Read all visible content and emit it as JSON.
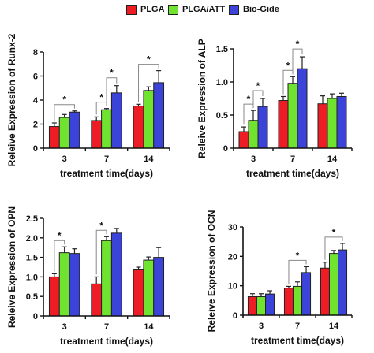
{
  "legend": {
    "items": [
      {
        "label": "PLGA",
        "color": "#ee1c24"
      },
      {
        "label": "PLGA/ATT",
        "color": "#6fe32f"
      },
      {
        "label": "Bio-Gide",
        "color": "#3b43d8"
      }
    ]
  },
  "chart_data": [
    {
      "type": "bar",
      "categories": [
        "3",
        "7",
        "14"
      ],
      "series": [
        {
          "name": "PLGA",
          "values": [
            1.8,
            2.3,
            3.5
          ],
          "errors": [
            0.3,
            0.3,
            0.15
          ]
        },
        {
          "name": "PLGA/ATT",
          "values": [
            2.55,
            3.2,
            4.8
          ],
          "errors": [
            0.25,
            0.1,
            0.3
          ]
        },
        {
          "name": "Bio-Gide",
          "values": [
            3.0,
            4.6,
            5.45
          ],
          "errors": [
            0.1,
            0.6,
            1.0
          ]
        }
      ],
      "xlabel": "treatment time(days)",
      "ylabel": "Releive Expression of Runx-2",
      "ylim": [
        0,
        8
      ],
      "yticks": [
        "0",
        "2",
        "4",
        "6",
        "8"
      ],
      "significance": [
        {
          "category": 0,
          "from": 0,
          "to": 2,
          "label": "*"
        },
        {
          "category": 1,
          "from": 0,
          "to": 1,
          "label": "*"
        },
        {
          "category": 1,
          "from": 1,
          "to": 2,
          "label": "*"
        },
        {
          "category": 2,
          "from": 0,
          "to": 2,
          "label": "*"
        }
      ]
    },
    {
      "type": "bar",
      "categories": [
        "3",
        "7",
        "14"
      ],
      "series": [
        {
          "name": "PLGA",
          "values": [
            0.25,
            0.72,
            0.67
          ],
          "errors": [
            0.07,
            0.06,
            0.12
          ]
        },
        {
          "name": "PLGA/ATT",
          "values": [
            0.42,
            0.98,
            0.75
          ],
          "errors": [
            0.15,
            0.1,
            0.07
          ]
        },
        {
          "name": "Bio-Gide",
          "values": [
            0.63,
            1.2,
            0.78
          ],
          "errors": [
            0.12,
            0.18,
            0.05
          ]
        }
      ],
      "xlabel": "treatment time(days)",
      "ylabel": "Releive Expression of ALP",
      "ylim": [
        0,
        1.5
      ],
      "yticks": [
        "0",
        "0.5",
        "1.0",
        "1.5"
      ],
      "significance": [
        {
          "category": 0,
          "from": 0,
          "to": 1,
          "label": "*"
        },
        {
          "category": 0,
          "from": 1,
          "to": 2,
          "label": "*"
        },
        {
          "category": 1,
          "from": 0,
          "to": 1,
          "label": "*"
        },
        {
          "category": 1,
          "from": 1,
          "to": 2,
          "label": "*"
        }
      ]
    },
    {
      "type": "bar",
      "categories": [
        "3",
        "7",
        "14"
      ],
      "series": [
        {
          "name": "PLGA",
          "values": [
            1.0,
            0.82,
            1.18
          ],
          "errors": [
            0.08,
            0.18,
            0.07
          ]
        },
        {
          "name": "PLGA/ATT",
          "values": [
            1.62,
            1.93,
            1.43
          ],
          "errors": [
            0.15,
            0.1,
            0.08
          ]
        },
        {
          "name": "Bio-Gide",
          "values": [
            1.6,
            2.12,
            1.5
          ],
          "errors": [
            0.12,
            0.12,
            0.25
          ]
        }
      ],
      "xlabel": "treatment time(days)",
      "ylabel": "Releive Expression of OPN",
      "ylim": [
        0,
        2.5
      ],
      "yticks": [
        "0",
        "0.5",
        "1.0",
        "1.5",
        "2.0",
        "2.5"
      ],
      "significance": [
        {
          "category": 0,
          "from": 0,
          "to": 1,
          "label": "*"
        },
        {
          "category": 1,
          "from": 0,
          "to": 1,
          "label": "*"
        }
      ]
    },
    {
      "type": "bar",
      "categories": [
        "3",
        "7",
        "14"
      ],
      "series": [
        {
          "name": "PLGA",
          "values": [
            6.3,
            9.2,
            16.0
          ],
          "errors": [
            1.0,
            0.6,
            2.0
          ]
        },
        {
          "name": "PLGA/ATT",
          "values": [
            6.3,
            9.8,
            21.0
          ],
          "errors": [
            1.0,
            1.5,
            1.0
          ]
        },
        {
          "name": "Bio-Gide",
          "values": [
            7.2,
            14.5,
            22.2
          ],
          "errors": [
            1.1,
            2.0,
            2.2
          ]
        }
      ],
      "xlabel": "treatment time(days)",
      "ylabel": "Releive Expression of OCN",
      "ylim": [
        0,
        30
      ],
      "yticks": [
        "0",
        "10",
        "20",
        "30"
      ],
      "significance": [
        {
          "category": 1,
          "from": 0,
          "to": 2,
          "label": "*"
        },
        {
          "category": 2,
          "from": 0,
          "to": 2,
          "label": "*"
        }
      ]
    }
  ]
}
